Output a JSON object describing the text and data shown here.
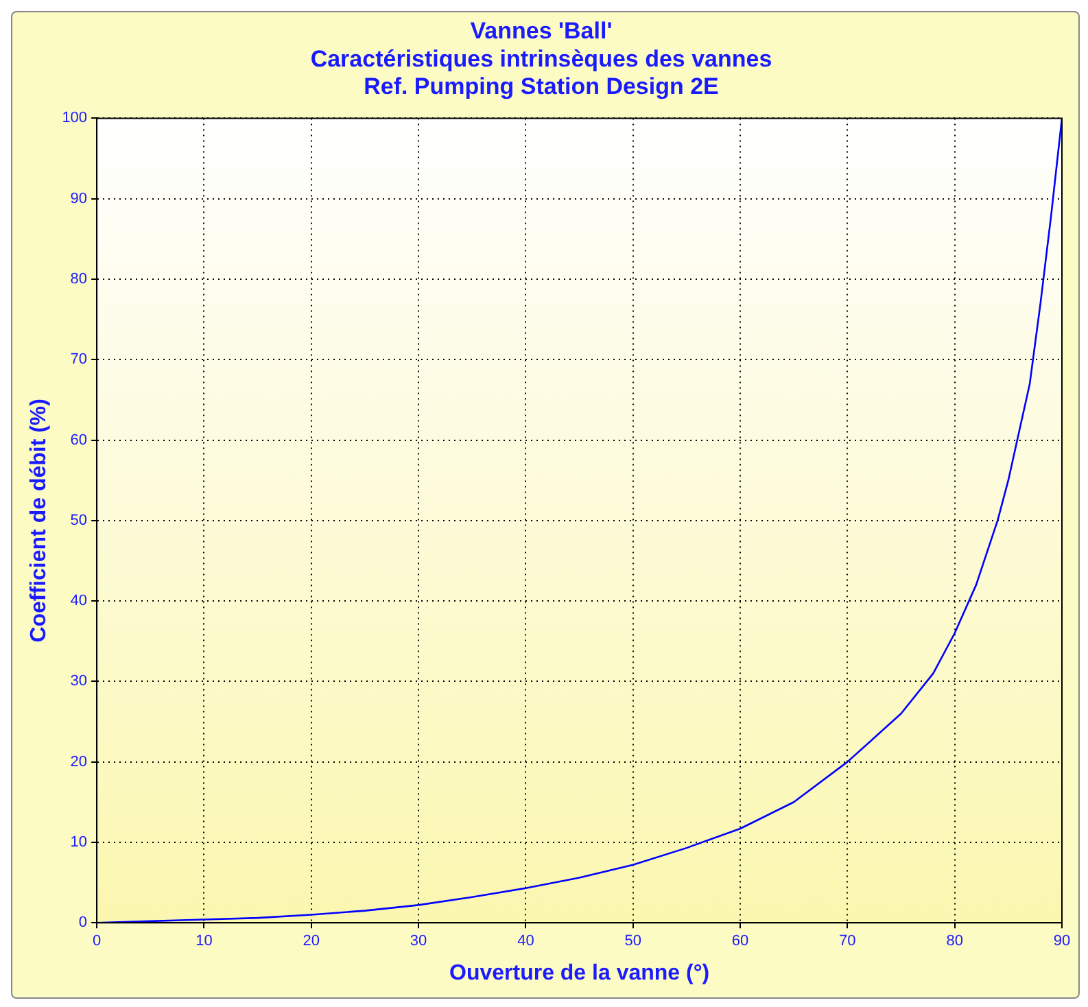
{
  "chart_data": {
    "type": "line",
    "title": [
      "Vannes 'Ball'",
      "Caractéristiques intrinsèques des vannes",
      "Ref. Pumping Station Design 2E"
    ],
    "xlabel": "Ouverture de la vanne (°)",
    "ylabel": "Coefficient de débit (%)",
    "x": [
      0,
      5,
      10,
      15,
      20,
      25,
      30,
      35,
      40,
      45,
      50,
      55,
      60,
      65,
      70,
      75,
      78,
      80,
      82,
      84,
      85,
      86,
      87,
      88,
      89,
      90
    ],
    "series": [
      {
        "color": "#0000ff",
        "values": [
          0,
          0.2,
          0.4,
          0.6,
          1,
          1.5,
          2.2,
          3.2,
          4.3,
          5.6,
          7.2,
          9.3,
          11.7,
          15,
          20,
          26,
          31,
          36,
          42,
          50,
          55,
          61,
          67,
          77,
          88,
          100
        ]
      }
    ],
    "xlim": [
      0,
      90
    ],
    "xticks": [
      0,
      10,
      20,
      30,
      40,
      50,
      60,
      70,
      80,
      90
    ],
    "ylim": [
      0,
      100
    ],
    "yticks": [
      0,
      10,
      20,
      30,
      40,
      50,
      60,
      70,
      80,
      90,
      100
    ],
    "grid": true,
    "legend": false,
    "marker": "none",
    "line_style": "solid"
  }
}
